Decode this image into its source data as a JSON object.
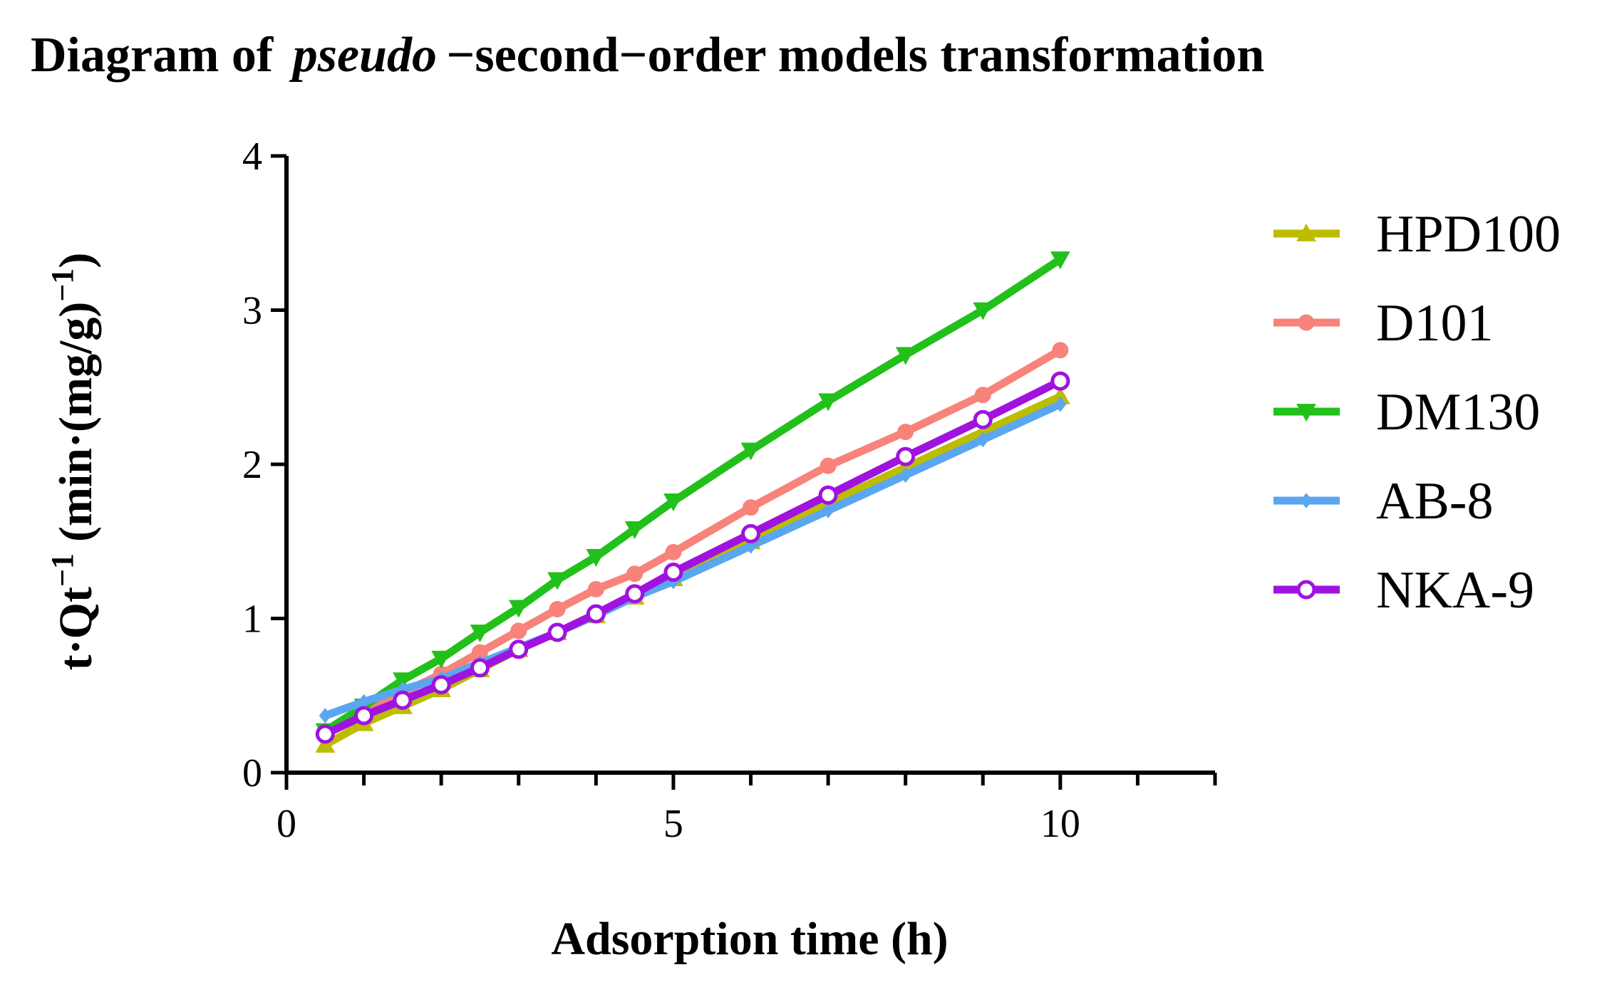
{
  "chart_data": {
    "type": "line",
    "title": [
      "Diagram of",
      "pseudo",
      "−second−order models transformation"
    ],
    "xlabel": "Adsorption time (h)",
    "ylabel": [
      "t·Qt",
      "−1",
      "(min·(mg/g)",
      "−1",
      ")"
    ],
    "x": [
      0.5,
      1,
      1.5,
      2,
      2.5,
      3,
      3.5,
      4,
      4.5,
      5,
      6,
      7,
      8,
      9,
      10
    ],
    "series": [
      {
        "name": "HPD100",
        "color": "#bcbc00",
        "marker": "triangle-up",
        "values": [
          0.18,
          0.32,
          0.43,
          0.54,
          0.67,
          0.8,
          0.91,
          1.02,
          1.14,
          1.26,
          1.5,
          1.75,
          1.98,
          2.21,
          2.44
        ]
      },
      {
        "name": "D101",
        "color": "#f7837b",
        "marker": "circle",
        "values": [
          0.25,
          0.4,
          0.52,
          0.64,
          0.78,
          0.92,
          1.06,
          1.19,
          1.29,
          1.43,
          1.72,
          1.99,
          2.21,
          2.45,
          2.74
        ]
      },
      {
        "name": "DM130",
        "color": "#22c01a",
        "marker": "triangle-down",
        "values": [
          0.27,
          0.43,
          0.6,
          0.74,
          0.91,
          1.07,
          1.25,
          1.4,
          1.58,
          1.76,
          2.09,
          2.41,
          2.71,
          3.0,
          3.33
        ]
      },
      {
        "name": "AB-8",
        "color": "#5aa6f0",
        "marker": "diamond",
        "values": [
          0.37,
          0.46,
          0.54,
          0.61,
          0.71,
          0.81,
          0.91,
          1.02,
          1.14,
          1.24,
          1.47,
          1.7,
          1.93,
          2.16,
          2.39
        ]
      },
      {
        "name": "NKA-9",
        "color": "#a012e0",
        "marker": "open-circle",
        "values": [
          0.25,
          0.37,
          0.47,
          0.57,
          0.68,
          0.8,
          0.91,
          1.03,
          1.16,
          1.3,
          1.55,
          1.8,
          2.05,
          2.29,
          2.54
        ]
      }
    ],
    "xlim": [
      0,
      12
    ],
    "xticks": [
      0,
      5,
      10
    ],
    "xminorticks": [
      1,
      2,
      3,
      4,
      6,
      7,
      8,
      9,
      11,
      12
    ],
    "ylim": [
      0,
      4
    ],
    "yticks": [
      0,
      1,
      2,
      3,
      4
    ],
    "legend": "right"
  }
}
